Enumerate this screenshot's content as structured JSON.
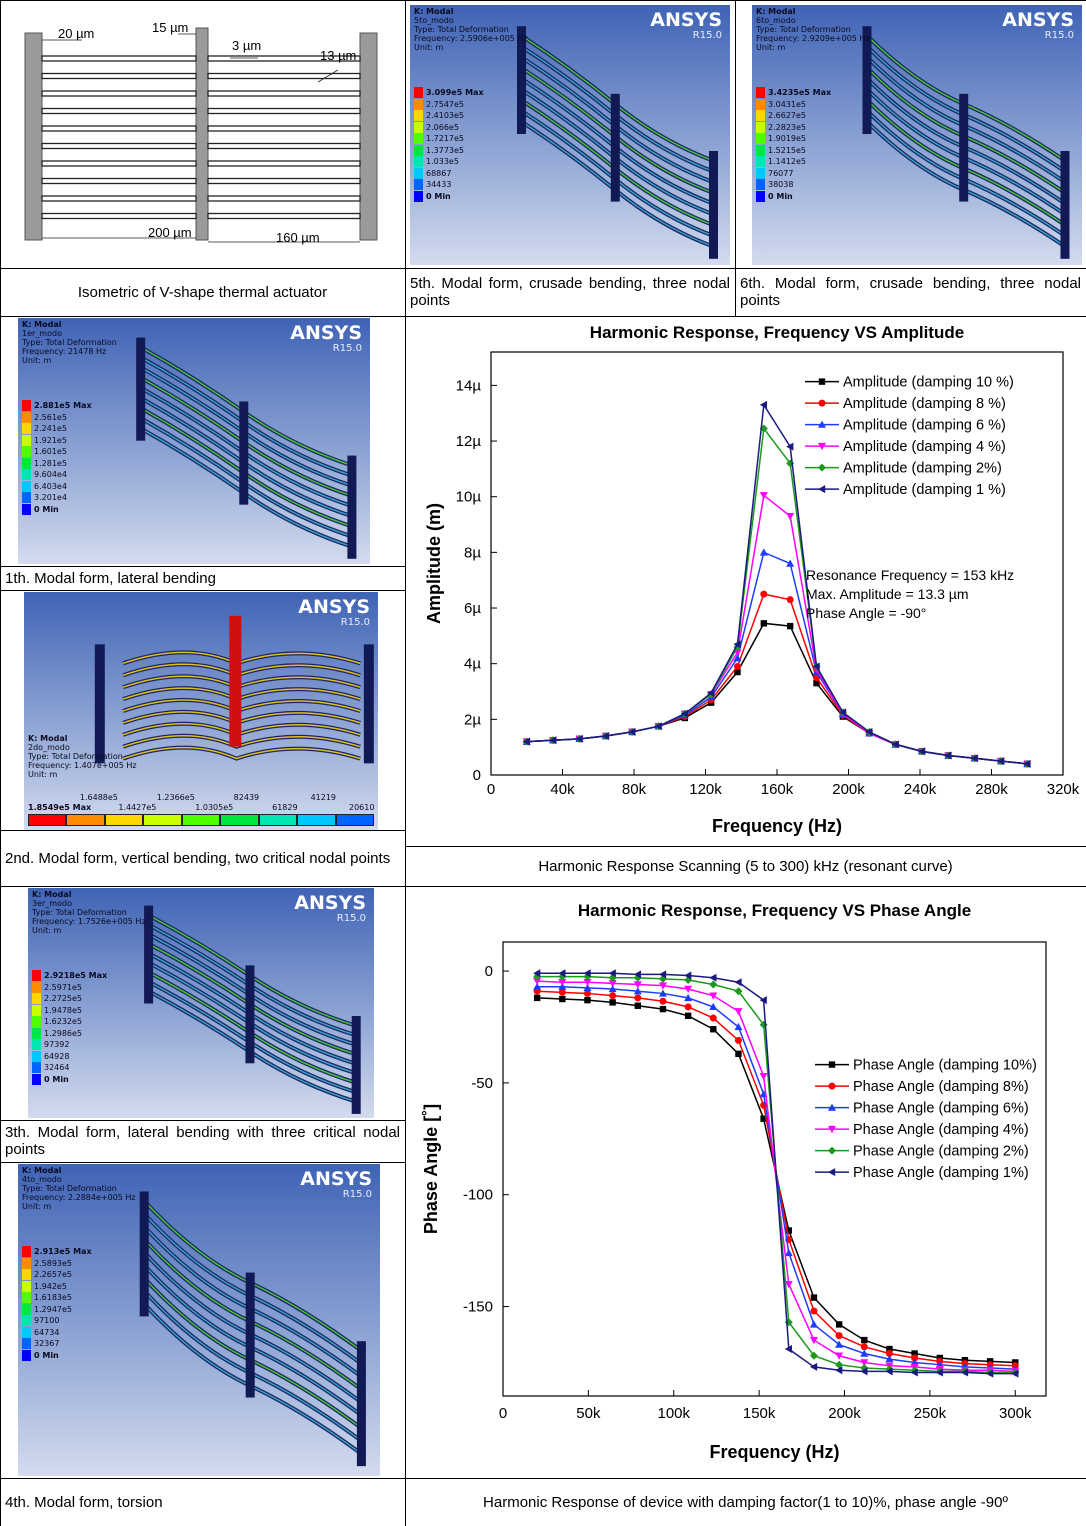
{
  "table": {
    "diagram": {
      "labels": [
        "20 µm",
        "15 µm",
        "3 µm",
        "13 µm",
        "200 µm",
        "160 µm"
      ]
    },
    "panels": [
      {
        "header": [
          "K: Modal",
          "5to_modo",
          "Type: Total Deformation",
          "Frequency: 2.5906e+005 Hz",
          "Unit: m"
        ],
        "legend": [
          "3.099e5 Max",
          "2.7547e5",
          "2.4103e5",
          "2.066e5",
          "1.7217e5",
          "1.3773e5",
          "1.033e5",
          "68867",
          "34433",
          "0 Min"
        ],
        "logo": "ANSYS",
        "version": "R15.0"
      },
      {
        "header": [
          "K: Modal",
          "6to_modo",
          "Type: Total Deformation",
          "Frequency: 2.9209e+005 Hz",
          "Unit: m"
        ],
        "legend": [
          "3.4235e5 Max",
          "3.0431e5",
          "2.6627e5",
          "2.2823e5",
          "1.9019e5",
          "1.5215e5",
          "1.1412e5",
          "76077",
          "38038",
          "0 Min"
        ],
        "logo": "ANSYS",
        "version": "R15.0"
      },
      {
        "header": [
          "K: Modal",
          "1er_modo",
          "Type: Total Deformation",
          "Frequency: 21478 Hz",
          "Unit: m"
        ],
        "legend": [
          "2.881e5 Max",
          "2.561e5",
          "2.241e5",
          "1.921e5",
          "1.601e5",
          "1.281e5",
          "9.604e4",
          "6.403e4",
          "3.201e4",
          "0 Min"
        ],
        "logo": "ANSYS",
        "version": "R15.0"
      },
      {
        "header": [
          "K: Modal",
          "2do_modo",
          "Type: Total Deformation",
          "Frequency: 1.407e+005 Hz",
          "Unit: m"
        ],
        "legend": [
          "1.8549e5 Max",
          "1.6488e5",
          "1.4427e5",
          "1.2366e5",
          "1.0305e5",
          "82439",
          "61829",
          "41219",
          "20610"
        ],
        "orientation": "horizontal",
        "logo": "ANSYS",
        "version": "R15.0"
      },
      {
        "header": [
          "K: Modal",
          "3er_modo",
          "Type: Total Deformation",
          "Frequency: 1.7526e+005 Hz",
          "Unit: m"
        ],
        "legend": [
          "2.9218e5 Max",
          "2.5971e5",
          "2.2725e5",
          "1.9478e5",
          "1.6232e5",
          "1.2986e5",
          "97392",
          "64928",
          "32464",
          "0 Min"
        ],
        "logo": "ANSYS",
        "version": "R15.0"
      },
      {
        "header": [
          "K: Modal",
          "4to_modo",
          "Type: Total Deformation",
          "Frequency: 2.2884e+005 Hz",
          "Unit: m"
        ],
        "legend": [
          "2.913e5 Max",
          "2.5893e5",
          "2.2657e5",
          "1.942e5",
          "1.6183e5",
          "1.2947e5",
          "97100",
          "64734",
          "32367",
          "0 Min"
        ],
        "logo": "ANSYS",
        "version": "R15.0"
      }
    ],
    "captions": [
      "Isometric of V-shape  thermal actuator",
      "5th. Modal form, crusade bending, three nodal points",
      "6th. Modal form, crusade bending, three nodal points",
      "1th. Modal form, lateral bending",
      "2nd. Modal form, vertical bending, two critical nodal points",
      "Harmonic Response Scanning (5 to 300) kHz (resonant curve)",
      "3th. Modal form, lateral bending with three critical nodal points",
      "4th. Modal form, torsion",
      "Harmonic Response of device with damping factor(1 to 10)%, phase angle -90º"
    ]
  },
  "chart_data": [
    {
      "type": "line",
      "title": "Harmonic Response, Frequency VS Amplitude",
      "x_label": "Frequency (Hz)",
      "y_label": "Amplitude (m)",
      "x": [
        20000,
        34737,
        49474,
        64211,
        78947,
        93684,
        108421,
        123158,
        137895,
        152632,
        167368,
        182105,
        196842,
        211579,
        226316,
        241053,
        255789,
        270526,
        285263,
        300000
      ],
      "xlim": [
        0,
        320000
      ],
      "xticks": [
        0,
        {
          "value": 40000,
          "label": "40k"
        },
        {
          "value": 80000,
          "label": "80k"
        },
        {
          "value": 120000,
          "label": "120k"
        },
        {
          "value": 160000,
          "label": "160k"
        },
        {
          "value": 200000,
          "label": "200k"
        },
        {
          "value": 240000,
          "label": "240k"
        },
        {
          "value": 280000,
          "label": "280k"
        },
        {
          "value": 320000,
          "label": "320k"
        }
      ],
      "ylim": [
        0,
        1.52e-05
      ],
      "yticks": [
        0,
        {
          "value": 2e-06,
          "label": "2µ"
        },
        {
          "value": 4e-06,
          "label": "4µ"
        },
        {
          "value": 6e-06,
          "label": "6µ"
        },
        {
          "value": 8e-06,
          "label": "8µ"
        },
        {
          "value": 1e-05,
          "label": "10µ"
        },
        {
          "value": 1.2e-05,
          "label": "12µ"
        },
        {
          "value": 1.4e-05,
          "label": "14µ"
        }
      ],
      "legend": "upper right",
      "annotations": [
        "Resonance Frequency = 153 kHz",
        "Max. Amplitude = 13.3 µm",
        "Phase Angle = -90°"
      ],
      "series": [
        {
          "name": "Amplitude (damping 10 %)",
          "color": "#000000",
          "marker": "square",
          "values": [
            1.2e-06,
            1.25e-06,
            1.3e-06,
            1.4e-06,
            1.55e-06,
            1.75e-06,
            2.05e-06,
            2.6e-06,
            3.7e-06,
            5.45e-06,
            5.35e-06,
            3.3e-06,
            2.1e-06,
            1.5e-06,
            1.1e-06,
            8.5e-07,
            7e-07,
            6e-07,
            5e-07,
            4e-07
          ]
        },
        {
          "name": "Amplitude (damping 8 %)",
          "color": "#ff0000",
          "marker": "circle",
          "values": [
            1.2e-06,
            1.25e-06,
            1.3e-06,
            1.4e-06,
            1.55e-06,
            1.75e-06,
            2.1e-06,
            2.7e-06,
            3.9e-06,
            6.5e-06,
            6.3e-06,
            3.5e-06,
            2.15e-06,
            1.5e-06,
            1.1e-06,
            8.5e-07,
            7e-07,
            6e-07,
            5e-07,
            4e-07
          ]
        },
        {
          "name": "Amplitude (damping 6 %)",
          "color": "#1e3cff",
          "marker": "triangle-up",
          "values": [
            1.2e-06,
            1.25e-06,
            1.3e-06,
            1.4e-06,
            1.55e-06,
            1.75e-06,
            2.15e-06,
            2.8e-06,
            4.2e-06,
            8e-06,
            7.6e-06,
            3.7e-06,
            2.2e-06,
            1.5e-06,
            1.1e-06,
            8.5e-07,
            7e-07,
            6e-07,
            5e-07,
            4e-07
          ]
        },
        {
          "name": "Amplitude (damping 4 %)",
          "color": "#ff00ff",
          "marker": "triangle-down",
          "values": [
            1.2e-06,
            1.25e-06,
            1.3e-06,
            1.4e-06,
            1.55e-06,
            1.75e-06,
            2.2e-06,
            2.9e-06,
            4.4e-06,
            1.005e-05,
            9.3e-06,
            3.8e-06,
            2.2e-06,
            1.5e-06,
            1.1e-06,
            8.5e-07,
            7e-07,
            6e-07,
            5e-07,
            4e-07
          ]
        },
        {
          "name": "Amplitude (damping 2%)",
          "color": "#1a9a1a",
          "marker": "diamond",
          "values": [
            1.2e-06,
            1.25e-06,
            1.3e-06,
            1.4e-06,
            1.55e-06,
            1.75e-06,
            2.2e-06,
            2.9e-06,
            4.6e-06,
            1.245e-05,
            1.12e-05,
            3.9e-06,
            2.25e-06,
            1.55e-06,
            1.1e-06,
            8.5e-07,
            7e-07,
            6e-07,
            5e-07,
            4e-07
          ]
        },
        {
          "name": "Amplitude (damping 1 %)",
          "color": "#1a1a80",
          "marker": "triangle-left",
          "values": [
            1.2e-06,
            1.25e-06,
            1.3e-06,
            1.4e-06,
            1.55e-06,
            1.75e-06,
            2.2e-06,
            2.95e-06,
            4.7e-06,
            1.33e-05,
            1.18e-05,
            3.9e-06,
            2.25e-06,
            1.55e-06,
            1.1e-06,
            8.5e-07,
            7e-07,
            6e-07,
            5e-07,
            4e-07
          ]
        }
      ]
    },
    {
      "type": "line",
      "title": "Harmonic Response, Frequency VS Phase Angle",
      "x_label": "Frequency (Hz)",
      "y_label": "Phase Angle [˚]",
      "x": [
        20000,
        34737,
        49474,
        64211,
        78947,
        93684,
        108421,
        123158,
        137895,
        152632,
        167368,
        182105,
        196842,
        211579,
        226316,
        241053,
        255789,
        270526,
        285263,
        300000
      ],
      "xlim": [
        0,
        318000
      ],
      "xticks": [
        0,
        {
          "value": 50000,
          "label": "50k"
        },
        {
          "value": 100000,
          "label": "100k"
        },
        {
          "value": 150000,
          "label": "150k"
        },
        {
          "value": 200000,
          "label": "200k"
        },
        {
          "value": 250000,
          "label": "250k"
        },
        {
          "value": 300000,
          "label": "300k"
        }
      ],
      "ylim": [
        -190,
        13
      ],
      "yticks": [
        0,
        -50,
        -100,
        -150
      ],
      "legend": "center right",
      "series": [
        {
          "name": "Phase Angle (damping 10%)",
          "color": "#000000",
          "marker": "square",
          "values": [
            -12,
            -12.5,
            -13,
            -14,
            -15.5,
            -17,
            -20,
            -26,
            -37,
            -66,
            -116,
            -146,
            -158,
            -165,
            -169,
            -171,
            -173,
            -174,
            -174.5,
            -175
          ]
        },
        {
          "name": "Phase Angle (damping 8%)",
          "color": "#ff0000",
          "marker": "circle",
          "values": [
            -9,
            -9.5,
            -10,
            -11,
            -12,
            -13.5,
            -16,
            -21,
            -31,
            -60,
            -120,
            -152,
            -163,
            -168,
            -171,
            -173,
            -174.5,
            -175.5,
            -176,
            -176.5
          ]
        },
        {
          "name": "Phase Angle (damping 6%)",
          "color": "#1e3cff",
          "marker": "triangle-up",
          "values": [
            -7,
            -7,
            -7.5,
            -8,
            -9,
            -10,
            -12,
            -16,
            -25,
            -55,
            -126,
            -158,
            -167,
            -171,
            -173.5,
            -175,
            -176,
            -177,
            -177.5,
            -178
          ]
        },
        {
          "name": "Phase Angle (damping 4%)",
          "color": "#ff00ff",
          "marker": "triangle-down",
          "values": [
            -4.5,
            -5,
            -5,
            -5.5,
            -6,
            -6.5,
            -8,
            -11,
            -18,
            -47,
            -140,
            -165,
            -172,
            -175,
            -176.5,
            -177,
            -178,
            -178.5,
            -178.5,
            -179
          ]
        },
        {
          "name": "Phase Angle (damping 2%)",
          "color": "#1a9a1a",
          "marker": "diamond",
          "values": [
            -2.5,
            -2.5,
            -2.5,
            -3,
            -3,
            -3.5,
            -4,
            -6,
            -9,
            -24,
            -157,
            -172,
            -176,
            -177.5,
            -178,
            -178.5,
            -179,
            -179,
            -179.5,
            -179.5
          ]
        },
        {
          "name": "Phase Angle (damping 1%)",
          "color": "#1a1a80",
          "marker": "triangle-left",
          "values": [
            -1,
            -1,
            -1,
            -1,
            -1.5,
            -1.5,
            -2,
            -3,
            -5,
            -13,
            -169,
            -177,
            -178.5,
            -179,
            -179,
            -179.5,
            -179.5,
            -179.5,
            -180,
            -180
          ]
        }
      ]
    }
  ]
}
